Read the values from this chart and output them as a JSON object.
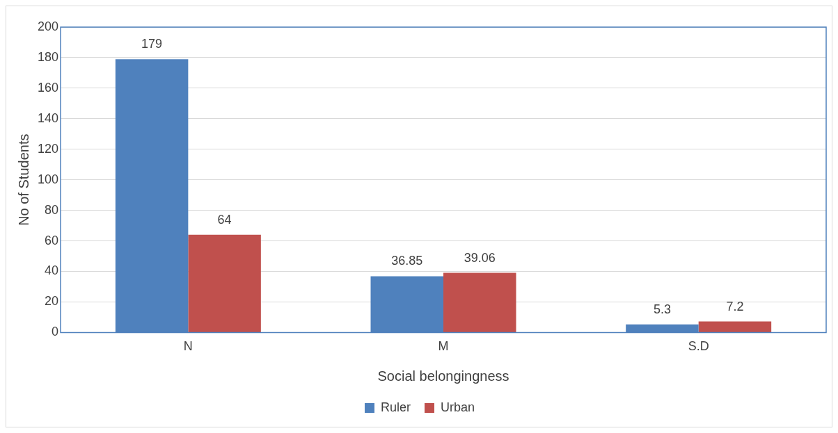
{
  "chart_data": {
    "type": "bar",
    "xlabel": "Social belongingness",
    "ylabel": "No of Students",
    "categories": [
      "N",
      "M",
      "S.D"
    ],
    "series": [
      {
        "name": "Ruler",
        "color": "#4f81bd",
        "values": [
          179,
          36.85,
          5.3
        ]
      },
      {
        "name": "Urban",
        "color": "#c0504d",
        "values": [
          64,
          39.06,
          7.2
        ]
      }
    ],
    "ylim": [
      0,
      200
    ],
    "yticks": [
      0,
      20,
      40,
      60,
      80,
      100,
      120,
      140,
      160,
      180,
      200
    ],
    "grid": "y",
    "legend": "bottom",
    "data_labels": true
  }
}
